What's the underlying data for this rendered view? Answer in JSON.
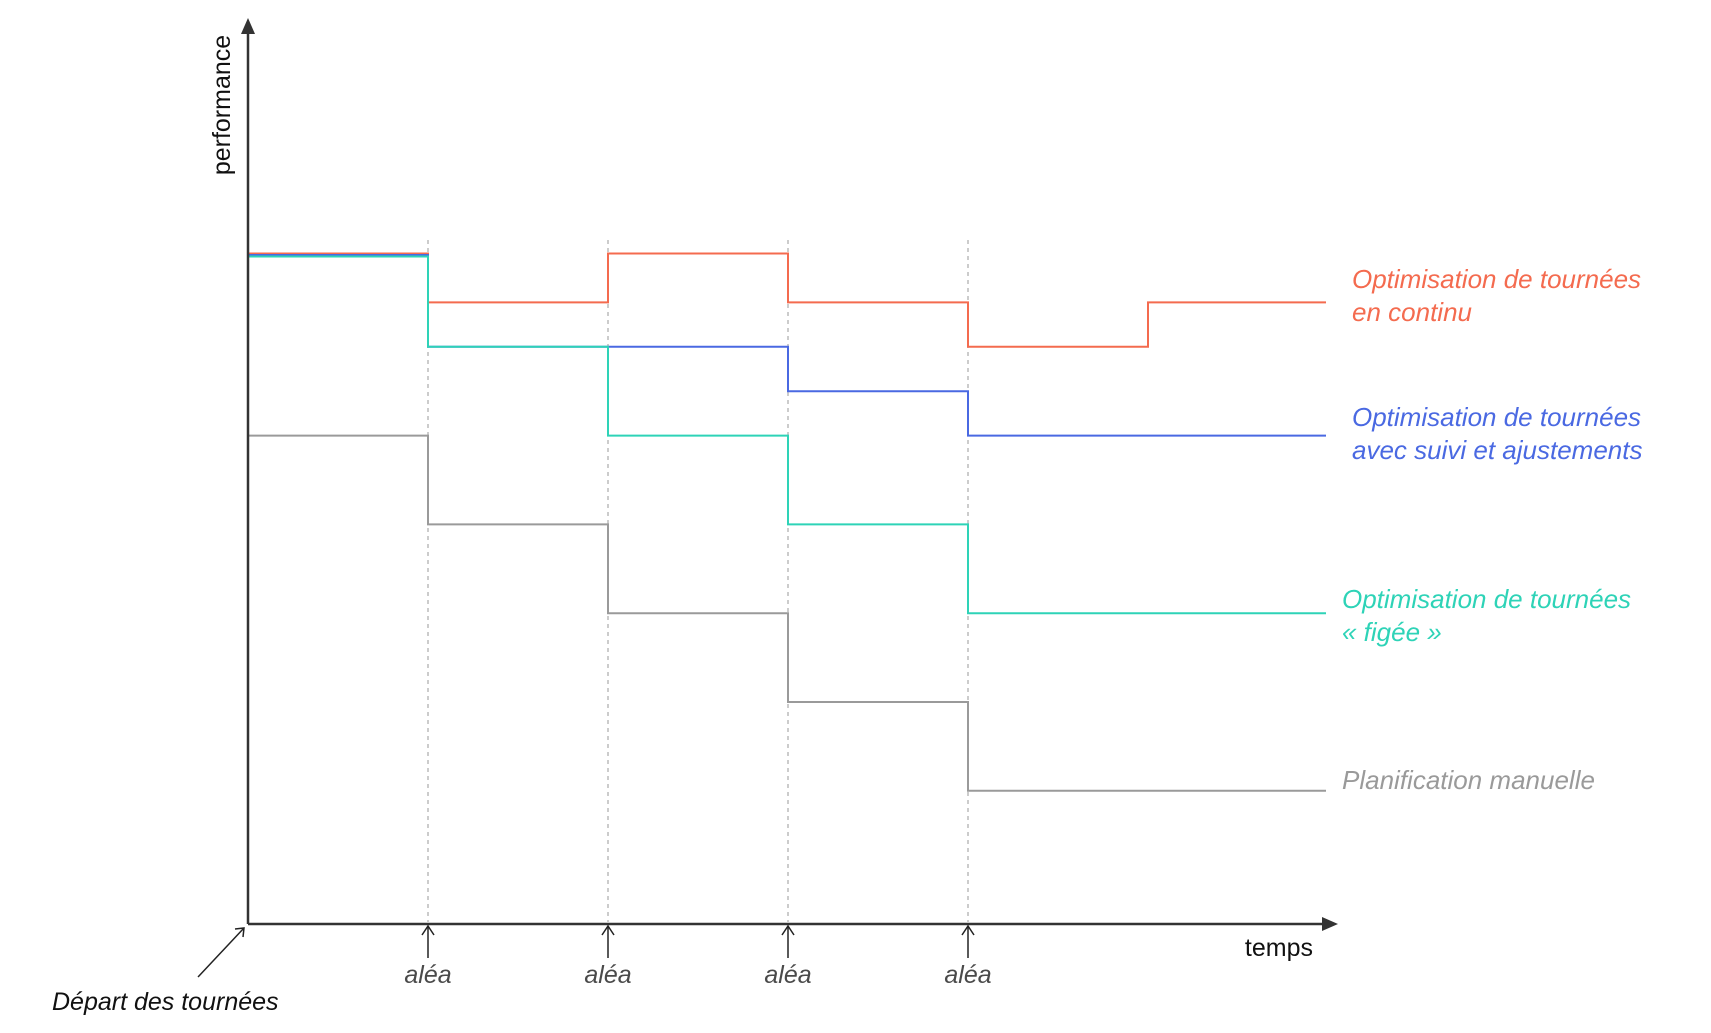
{
  "chart_data": {
    "type": "line",
    "step": true,
    "xlabel": "temps",
    "ylabel": "performance",
    "start_label": "Départ des tournées",
    "events": [
      {
        "x": 1,
        "label": "aléa"
      },
      {
        "x": 2,
        "label": "aléa"
      },
      {
        "x": 3,
        "label": "aléa"
      },
      {
        "x": 4,
        "label": "aléa"
      }
    ],
    "xlim": [
      0,
      6
    ],
    "ylim": [
      0,
      15
    ],
    "grid": false,
    "legend": "end-of-line labels, right",
    "x": [
      0,
      1,
      2,
      3,
      4,
      5
    ],
    "series": [
      {
        "name_lines": [
          "Optimisation de tournées",
          "en continu"
        ],
        "color": "#F46B4F",
        "values": [
          15,
          14,
          15,
          14,
          13,
          14
        ]
      },
      {
        "name_lines": [
          "Optimisation de tournées",
          "avec suivi et ajustements"
        ],
        "color": "#4A69E2",
        "values": [
          15,
          13,
          13,
          12,
          11,
          11
        ]
      },
      {
        "name_lines": [
          "Optimisation de tournées",
          "« figée »"
        ],
        "color": "#2ED3B7",
        "values": [
          15,
          13,
          11,
          9,
          7,
          7
        ]
      },
      {
        "name_lines": [
          "Planification manuelle"
        ],
        "color": "#9A9A9A",
        "values": [
          11,
          9,
          7,
          5,
          3,
          3
        ]
      }
    ]
  }
}
